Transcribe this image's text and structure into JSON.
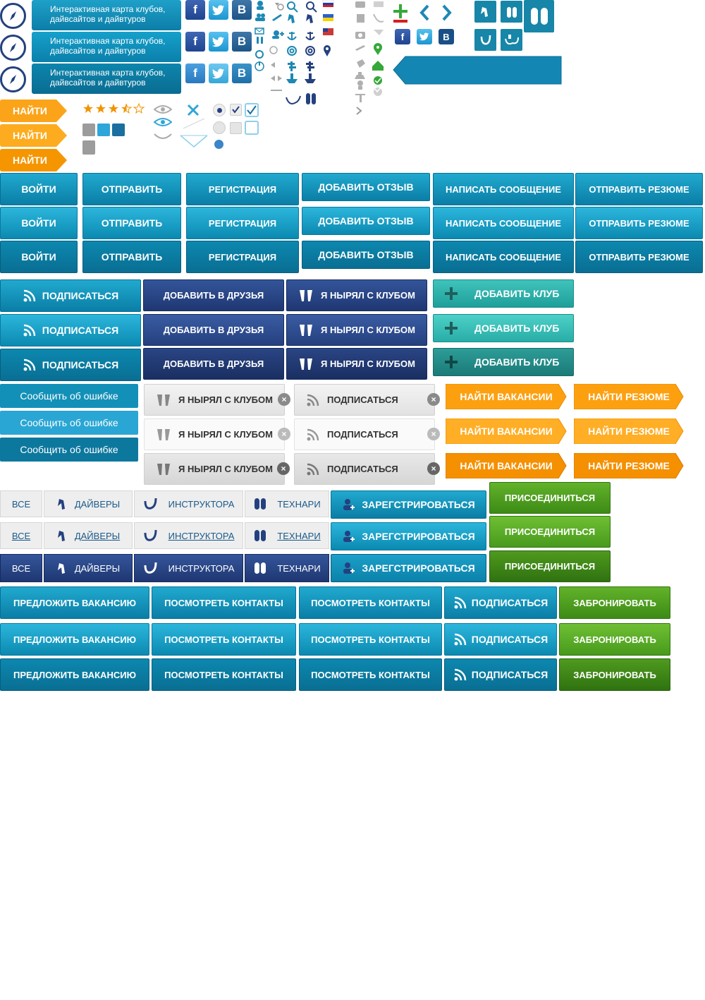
{
  "map_banner": {
    "text": "Интерактивная карта клубов, дайвсайтов и дайвтуров"
  },
  "find_label": "НАЙТИ",
  "rating": {
    "stars": 3.5,
    "max": 5
  },
  "social": {
    "fb": "f",
    "vk": "В"
  },
  "buttons": {
    "login": "ВОЙТИ",
    "send": "ОТПРАВИТЬ",
    "register_short": "РЕГИСТРАЦИЯ",
    "add_review": "ДОБАВИТЬ ОТЗЫВ",
    "write_message": "НАПИСАТЬ СООБЩЕНИЕ",
    "send_resume": "ОТПРАВИТЬ РЕЗЮМЕ",
    "subscribe": "ПОДПИСАТЬСЯ",
    "add_friend": "ДОБАВИТЬ В ДРУЗЬЯ",
    "dived_with_club": "Я НЫРЯЛ С КЛУБОМ",
    "add_club": "ДОБАВИТЬ КЛУБ",
    "report_error": "Сообщить об ошибке",
    "find_vacancies": "НАЙТИ ВАКАНСИИ",
    "find_resume": "НАЙТИ РЕЗЮМЕ",
    "register": "ЗАРЕГСТРИРОВАТЬСЯ",
    "join": "ПРИСОЕДИНИТЬСЯ",
    "offer_vacancy": "ПРЕДЛОЖИТЬ ВАКАНСИЮ",
    "view_contacts": "ПОСМОТРЕТЬ КОНТАКТЫ",
    "book": "ЗАБРОНИРОВАТЬ"
  },
  "filter_tabs": {
    "all": "ВСЕ",
    "divers": "ДАЙВЕРЫ",
    "instructors": "ИНСТРУКТОРА",
    "techs": "ТЕХНАРИ"
  },
  "colors": {
    "primary_blue": "#1790b8",
    "navy": "#26407e",
    "teal": "#2bb1aa",
    "orange": "#fda010",
    "green": "#4f9f1f",
    "icon_blue": "#1e88b4"
  }
}
